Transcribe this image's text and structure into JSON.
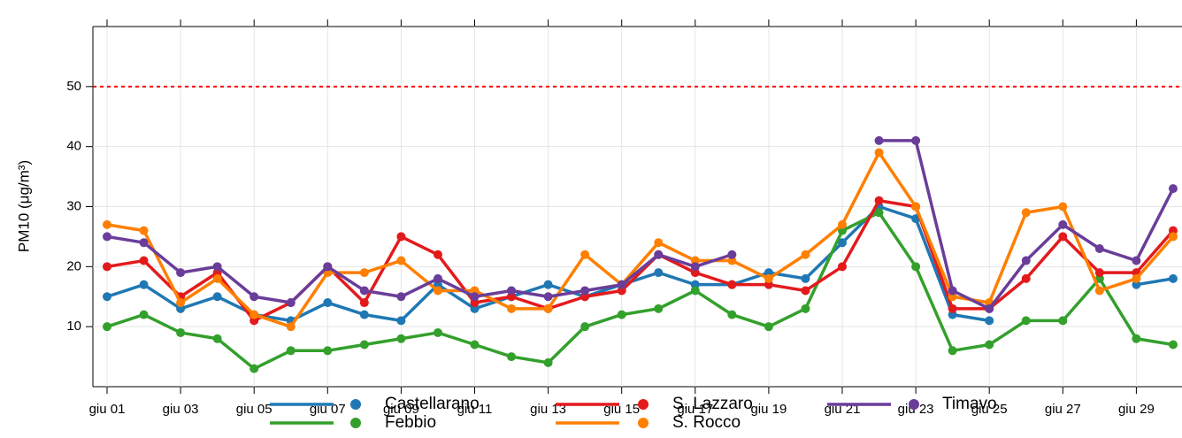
{
  "chart_data": {
    "type": "line",
    "y_label": "PM10 (μg/m³)",
    "categories": [
      "giu 01",
      null,
      "giu 03",
      null,
      "giu 05",
      null,
      "giu 07",
      null,
      "giu 09",
      null,
      "giu 11",
      null,
      "giu 13",
      null,
      "giu 15",
      null,
      "giu 17",
      null,
      "giu 19",
      null,
      "giu 21",
      null,
      "giu 23",
      null,
      "giu 25",
      null,
      "giu 27",
      null,
      "giu 29",
      null
    ],
    "series": [
      {
        "name": "Castellarano",
        "color": "#1f78b4",
        "values": [
          15,
          17,
          13,
          15,
          12,
          11,
          14,
          12,
          11,
          17,
          13,
          15,
          17,
          15,
          17,
          19,
          17,
          17,
          19,
          18,
          24,
          30,
          28,
          12,
          11,
          null,
          null,
          null,
          17,
          18
        ]
      },
      {
        "name": "Febbio",
        "color": "#33a02c",
        "values": [
          10,
          12,
          9,
          8,
          3,
          6,
          6,
          7,
          8,
          9,
          7,
          5,
          4,
          10,
          12,
          13,
          16,
          12,
          10,
          13,
          26,
          29,
          20,
          6,
          7,
          11,
          11,
          18,
          8,
          7
        ]
      },
      {
        "name": "S. Lazzaro",
        "color": "#e31a1c",
        "values": [
          20,
          21,
          15,
          19,
          11,
          14,
          20,
          14,
          25,
          22,
          14,
          15,
          13,
          15,
          16,
          22,
          19,
          17,
          17,
          16,
          20,
          31,
          30,
          13,
          13,
          18,
          25,
          19,
          19,
          26
        ]
      },
      {
        "name": "S. Rocco",
        "color": "#ff7f00",
        "values": [
          27,
          26,
          14,
          18,
          12,
          10,
          19,
          19,
          21,
          16,
          16,
          13,
          13,
          22,
          17,
          24,
          21,
          21,
          18,
          22,
          27,
          39,
          30,
          15,
          14,
          29,
          30,
          16,
          18,
          25
        ]
      },
      {
        "name": "Timavo",
        "color": "#6a3d9a",
        "values": [
          25,
          24,
          19,
          20,
          15,
          14,
          20,
          16,
          15,
          18,
          15,
          16,
          15,
          16,
          17,
          22,
          20,
          22,
          null,
          null,
          null,
          41,
          41,
          16,
          13,
          21,
          27,
          23,
          21,
          33
        ]
      }
    ],
    "ylim": [
      0,
      60
    ],
    "yticks": [
      10,
      20,
      30,
      40,
      50
    ],
    "grid": true,
    "threshold": 50,
    "threshold_color": "#ff0000"
  }
}
